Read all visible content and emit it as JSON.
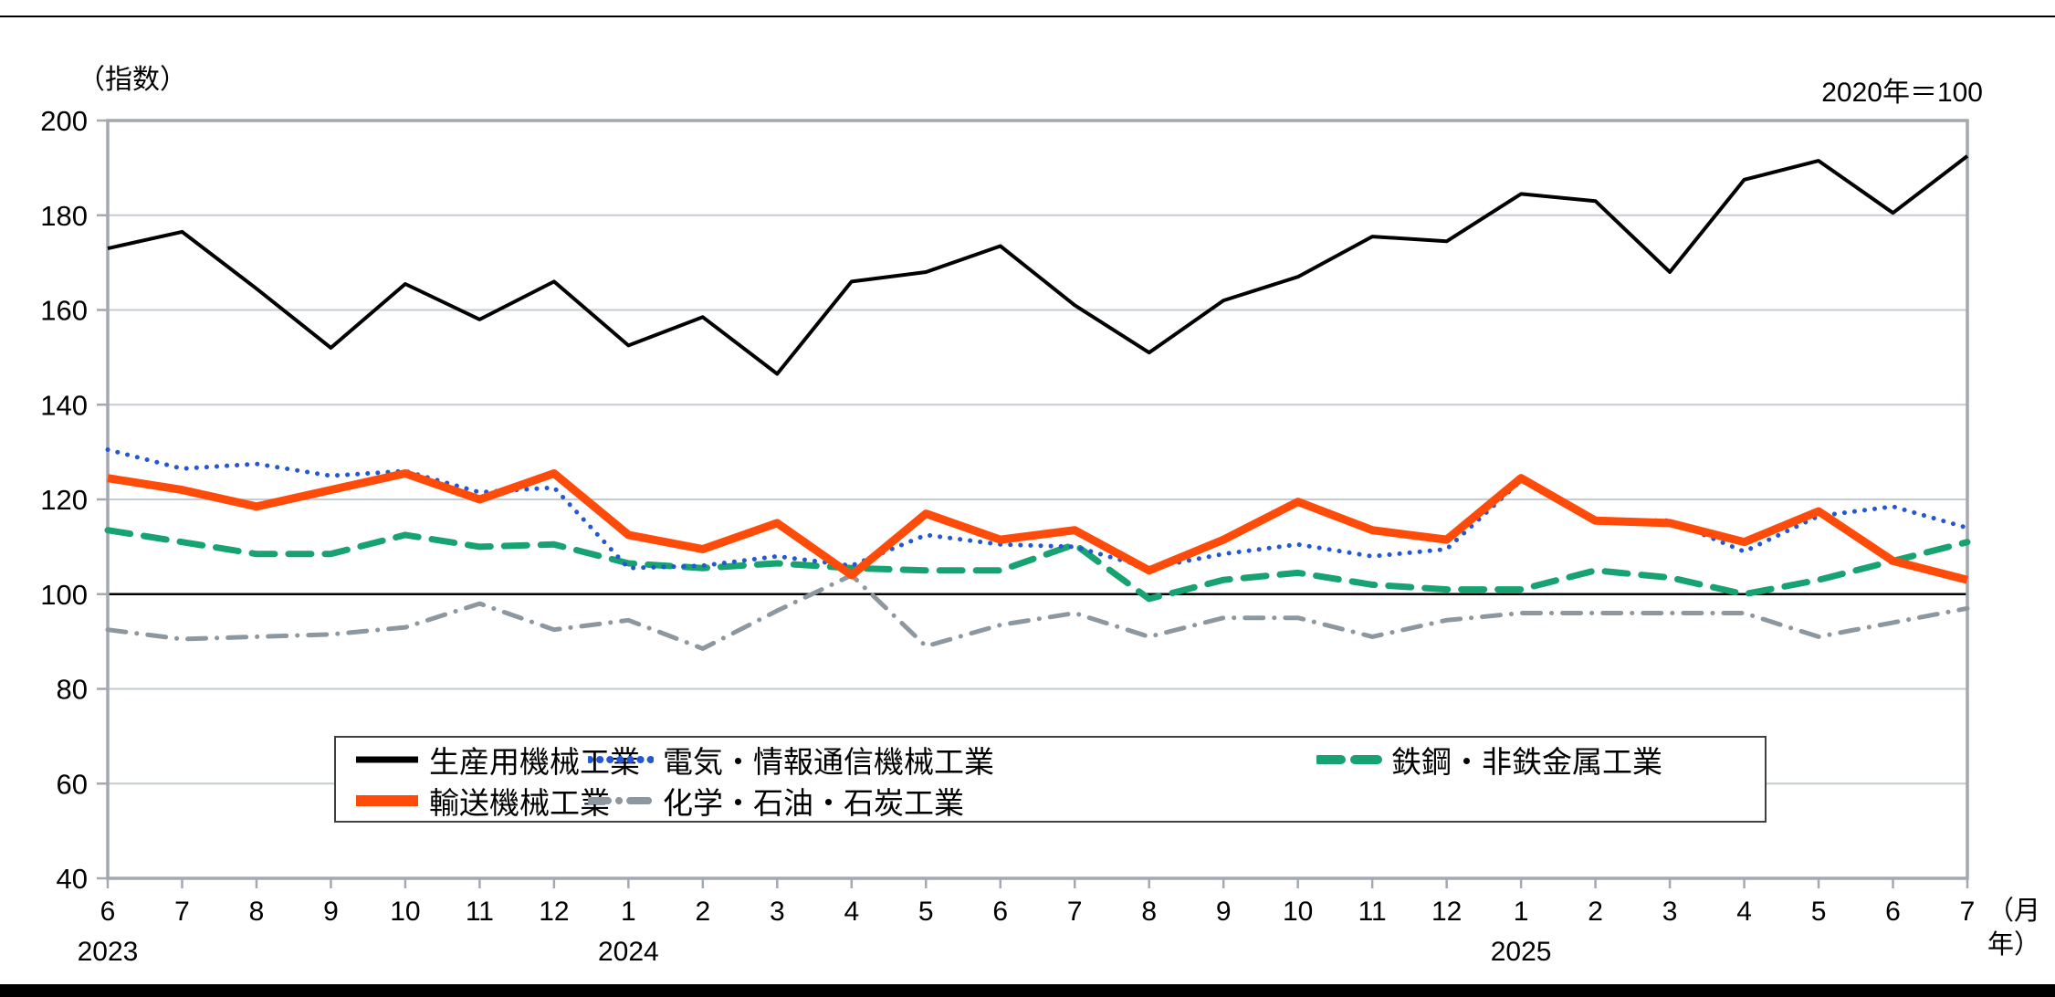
{
  "chart_data": {
    "type": "line",
    "title": "",
    "index_unit_label": "（指数）",
    "base_year_label": "2020年＝100",
    "x_unit_label_line1": "（月",
    "x_unit_label_line2": "年）",
    "grid": true,
    "legend_position": "bottom-center-box",
    "y_axis": {
      "min": 40,
      "max": 200,
      "step": 20,
      "tick_labels": [
        "200",
        "180",
        "160",
        "140",
        "120",
        "100",
        "80",
        "60",
        "40"
      ],
      "reference_line_value": 100
    },
    "x_axis": {
      "month_labels": [
        "6",
        "7",
        "8",
        "9",
        "10",
        "11",
        "12",
        "1",
        "2",
        "3",
        "4",
        "5",
        "6",
        "7",
        "8",
        "9",
        "10",
        "11",
        "12",
        "1",
        "2",
        "3",
        "4",
        "5",
        "6",
        "7"
      ],
      "year_labels": [
        {
          "text": "2023",
          "month_index": 0
        },
        {
          "text": "2024",
          "month_index": 7
        },
        {
          "text": "2025",
          "month_index": 19
        }
      ]
    },
    "legend_rows": [
      [
        0,
        1,
        2
      ],
      [
        3,
        4
      ]
    ],
    "draw_order": [
      4,
      2,
      1,
      3,
      0
    ],
    "series": [
      {
        "name": "生産用機械工業",
        "color": "#000000",
        "style": "solid",
        "width": 4,
        "values": [
          173,
          176.5,
          164.5,
          152,
          165.5,
          158,
          166,
          152.5,
          158.5,
          146.5,
          166,
          168,
          173.5,
          161,
          151,
          162,
          167,
          175.5,
          174.5,
          184.5,
          183,
          168,
          187.5,
          191.5,
          180.5,
          192.5
        ]
      },
      {
        "name": "電気・情報通信機械工業",
        "color": "#2457d4",
        "style": "dotted",
        "width": 5,
        "values": [
          130.5,
          126.5,
          127.5,
          125,
          126,
          121.5,
          122.5,
          105.5,
          106,
          108,
          106,
          112.5,
          110.5,
          110,
          105.5,
          108.5,
          110.5,
          108,
          109.5,
          124,
          115.5,
          115.5,
          109,
          116.5,
          118.5,
          114
        ]
      },
      {
        "name": "鉄鋼・非鉄金属工業",
        "color": "#17a271",
        "style": "dashed",
        "width": 7,
        "values": [
          113.5,
          111,
          108.5,
          108.5,
          112.5,
          110,
          110.5,
          106.5,
          105.5,
          106.5,
          105.5,
          105,
          105,
          110.5,
          99,
          103,
          104.5,
          102,
          101,
          101,
          105,
          103.5,
          100,
          103,
          107,
          111
        ]
      },
      {
        "name": "輸送機械工業",
        "color": "#ff4b0a",
        "style": "solid",
        "width": 9,
        "values": [
          124.5,
          122,
          118.5,
          122,
          125.5,
          120,
          125.5,
          112.5,
          109.5,
          115,
          104,
          117,
          111.5,
          113.5,
          105,
          111.5,
          119.5,
          113.5,
          111.5,
          124.5,
          115.5,
          115,
          111,
          117.5,
          107,
          103
        ]
      },
      {
        "name": "化学・石油・石炭工業",
        "color": "#8d97a0",
        "style": "dashdot",
        "width": 5,
        "values": [
          92.5,
          90.5,
          91,
          91.5,
          93,
          98,
          92.5,
          94.5,
          88.5,
          96.5,
          104,
          89,
          93.5,
          96,
          91,
          95,
          95,
          91,
          94.5,
          96,
          96,
          96,
          96,
          91,
          94,
          97
        ]
      }
    ],
    "plot_style": {
      "gridline_color": "#c6ccd3",
      "border_color": "#a3a9b0",
      "reference_line_color": "#000000",
      "background": "#ffffff"
    }
  }
}
